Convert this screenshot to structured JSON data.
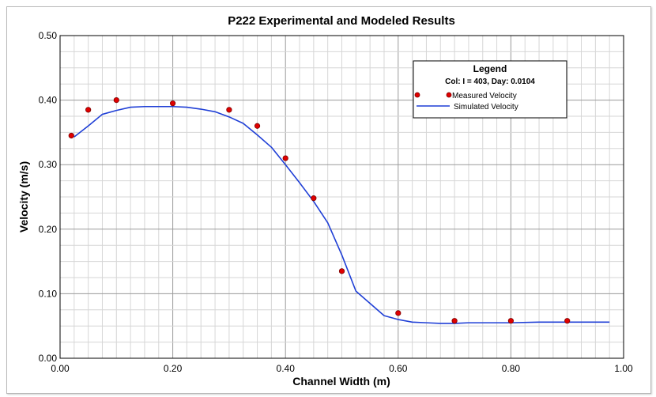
{
  "chart_data": {
    "type": "line",
    "title": "P222 Experimental and Modeled Results",
    "xlabel": "Channel Width (m)",
    "ylabel": "Velocity (m/s)",
    "xlim": [
      0,
      1.0
    ],
    "ylim": [
      0,
      0.5
    ],
    "x_ticks": [
      "0.00",
      "0.20",
      "0.40",
      "0.60",
      "0.80",
      "1.00"
    ],
    "y_ticks": [
      "0.00",
      "0.10",
      "0.20",
      "0.30",
      "0.40",
      "0.50"
    ],
    "grid": true,
    "legend": {
      "title": "Legend",
      "subtitle": "Col: I = 403, Day: 0.0104",
      "placement": "top-right"
    },
    "series": [
      {
        "name": "Measured Velocity",
        "kind": "scatter",
        "color": "#e00000",
        "x": [
          0.02,
          0.05,
          0.1,
          0.2,
          0.3,
          0.35,
          0.4,
          0.45,
          0.5,
          0.6,
          0.7,
          0.8,
          0.9
        ],
        "y": [
          0.345,
          0.385,
          0.4,
          0.395,
          0.385,
          0.36,
          0.31,
          0.248,
          0.135,
          0.07,
          0.058,
          0.058,
          0.058
        ]
      },
      {
        "name": "Simulated Velocity",
        "kind": "line",
        "color": "#1f3fd6",
        "x": [
          0.025,
          0.05,
          0.075,
          0.1,
          0.125,
          0.15,
          0.175,
          0.2,
          0.225,
          0.25,
          0.275,
          0.3,
          0.325,
          0.35,
          0.375,
          0.4,
          0.425,
          0.45,
          0.475,
          0.5,
          0.525,
          0.55,
          0.575,
          0.6,
          0.625,
          0.65,
          0.675,
          0.7,
          0.725,
          0.75,
          0.8,
          0.85,
          0.9,
          0.95,
          0.975
        ],
        "y": [
          0.343,
          0.36,
          0.378,
          0.384,
          0.389,
          0.39,
          0.39,
          0.39,
          0.389,
          0.386,
          0.382,
          0.374,
          0.364,
          0.346,
          0.327,
          0.3,
          0.272,
          0.243,
          0.21,
          0.16,
          0.104,
          0.085,
          0.066,
          0.06,
          0.056,
          0.055,
          0.054,
          0.054,
          0.055,
          0.055,
          0.055,
          0.056,
          0.056,
          0.056,
          0.056
        ]
      }
    ]
  }
}
